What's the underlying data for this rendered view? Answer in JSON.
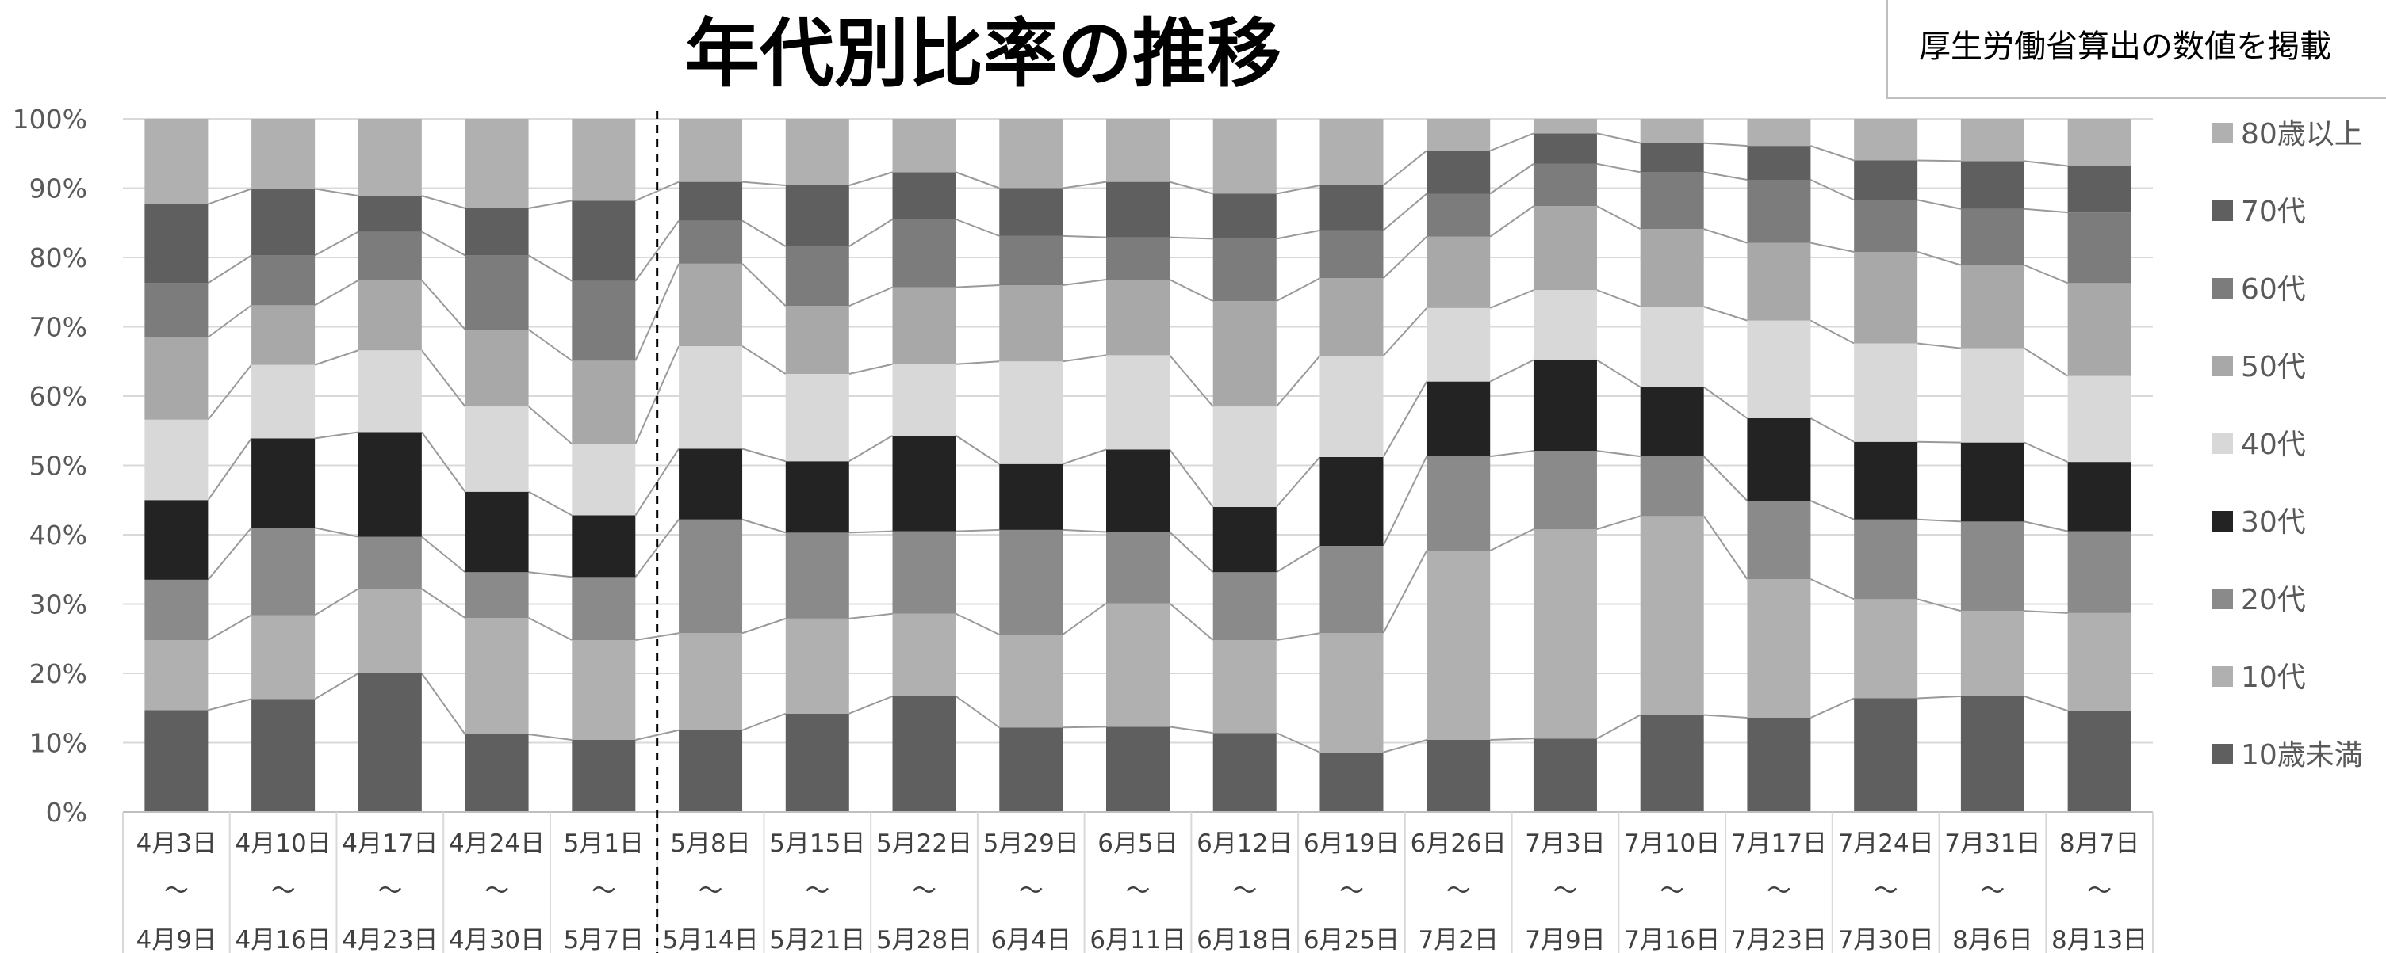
{
  "chart_data": {
    "type": "bar",
    "stacked": true,
    "percent": true,
    "title": "年代別比率の推移",
    "note": "厚生労働省算出の数値を掲載",
    "yticks": [
      "0%",
      "10%",
      "20%",
      "30%",
      "40%",
      "50%",
      "60%",
      "70%",
      "80%",
      "90%",
      "100%"
    ],
    "ylim": [
      0,
      100
    ],
    "grid": true,
    "legend_position": "right",
    "categories": [
      {
        "start": "4月3日",
        "sep": "～",
        "end": "4月9日"
      },
      {
        "start": "4月10日",
        "sep": "～",
        "end": "4月16日"
      },
      {
        "start": "4月17日",
        "sep": "～",
        "end": "4月23日"
      },
      {
        "start": "4月24日",
        "sep": "～",
        "end": "4月30日"
      },
      {
        "start": "5月1日",
        "sep": "～",
        "end": "5月7日"
      },
      {
        "start": "5月8日",
        "sep": "～",
        "end": "5月14日"
      },
      {
        "start": "5月15日",
        "sep": "～",
        "end": "5月21日"
      },
      {
        "start": "5月22日",
        "sep": "～",
        "end": "5月28日"
      },
      {
        "start": "5月29日",
        "sep": "～",
        "end": "6月4日"
      },
      {
        "start": "6月5日",
        "sep": "～",
        "end": "6月11日"
      },
      {
        "start": "6月12日",
        "sep": "～",
        "end": "6月18日"
      },
      {
        "start": "6月19日",
        "sep": "～",
        "end": "6月25日"
      },
      {
        "start": "6月26日",
        "sep": "～",
        "end": "7月2日"
      },
      {
        "start": "7月3日",
        "sep": "～",
        "end": "7月9日"
      },
      {
        "start": "7月10日",
        "sep": "～",
        "end": "7月16日"
      },
      {
        "start": "7月17日",
        "sep": "～",
        "end": "7月23日"
      },
      {
        "start": "7月24日",
        "sep": "～",
        "end": "7月30日"
      },
      {
        "start": "7月31日",
        "sep": "～",
        "end": "8月6日"
      },
      {
        "start": "8月7日",
        "sep": "～",
        "end": "8月13日"
      }
    ],
    "divider_after_index": 4,
    "series": [
      {
        "name": "10歳未満",
        "color": "#5f5f5f",
        "values": [
          14.7,
          16.3,
          20.0,
          11.2,
          10.4,
          11.8,
          14.2,
          16.7,
          12.2,
          12.3,
          11.4,
          8.6,
          10.4,
          10.6,
          14.0,
          13.6,
          16.4,
          16.7,
          14.6
        ]
      },
      {
        "name": "10代",
        "color": "#b0b0b0",
        "values": [
          10.1,
          12.1,
          12.2,
          16.8,
          14.4,
          14.0,
          13.7,
          11.9,
          13.4,
          17.8,
          13.4,
          17.2,
          27.3,
          30.2,
          28.7,
          20.0,
          14.3,
          12.3,
          14.1
        ]
      },
      {
        "name": "20代",
        "color": "#8a8a8a",
        "values": [
          8.7,
          12.6,
          7.5,
          6.6,
          9.1,
          16.4,
          12.4,
          11.9,
          15.1,
          10.3,
          9.8,
          12.6,
          13.6,
          11.3,
          8.6,
          11.3,
          11.5,
          12.9,
          11.8
        ]
      },
      {
        "name": "30代",
        "color": "#232323",
        "values": [
          11.5,
          12.9,
          15.1,
          11.6,
          8.9,
          10.2,
          10.3,
          13.8,
          9.5,
          11.9,
          9.4,
          12.8,
          10.8,
          13.1,
          10.0,
          11.9,
          11.2,
          11.4,
          10.0
        ]
      },
      {
        "name": "40代",
        "color": "#d8d8d8",
        "values": [
          11.6,
          10.6,
          11.8,
          12.3,
          10.3,
          14.8,
          12.6,
          10.3,
          14.8,
          13.6,
          14.5,
          14.6,
          10.6,
          10.1,
          11.6,
          14.1,
          14.2,
          13.6,
          12.4
        ]
      },
      {
        "name": "50代",
        "color": "#a8a8a8",
        "values": [
          11.9,
          8.6,
          10.1,
          11.1,
          12.0,
          11.9,
          9.8,
          11.1,
          11.0,
          10.9,
          15.2,
          11.2,
          10.3,
          12.1,
          11.2,
          11.2,
          13.2,
          12.0,
          13.4
        ]
      },
      {
        "name": "60代",
        "color": "#7c7c7c",
        "values": [
          7.8,
          7.2,
          7.0,
          10.7,
          11.5,
          6.2,
          8.6,
          9.8,
          7.1,
          6.1,
          9.0,
          6.9,
          6.2,
          6.1,
          8.2,
          9.1,
          7.5,
          8.1,
          10.2
        ]
      },
      {
        "name": "70代",
        "color": "#5f5f5f",
        "values": [
          11.4,
          9.6,
          5.2,
          6.8,
          11.6,
          5.6,
          8.8,
          6.8,
          6.9,
          8.0,
          6.5,
          6.5,
          6.2,
          4.4,
          4.2,
          4.9,
          5.7,
          6.9,
          6.7
        ]
      },
      {
        "name": "80歳以上",
        "color": "#b0b0b0",
        "values": [
          12.3,
          10.1,
          11.1,
          12.9,
          11.8,
          9.1,
          9.6,
          7.7,
          10.0,
          9.1,
          10.8,
          9.6,
          4.6,
          2.1,
          3.5,
          3.9,
          6.0,
          6.1,
          6.8
        ]
      }
    ]
  }
}
